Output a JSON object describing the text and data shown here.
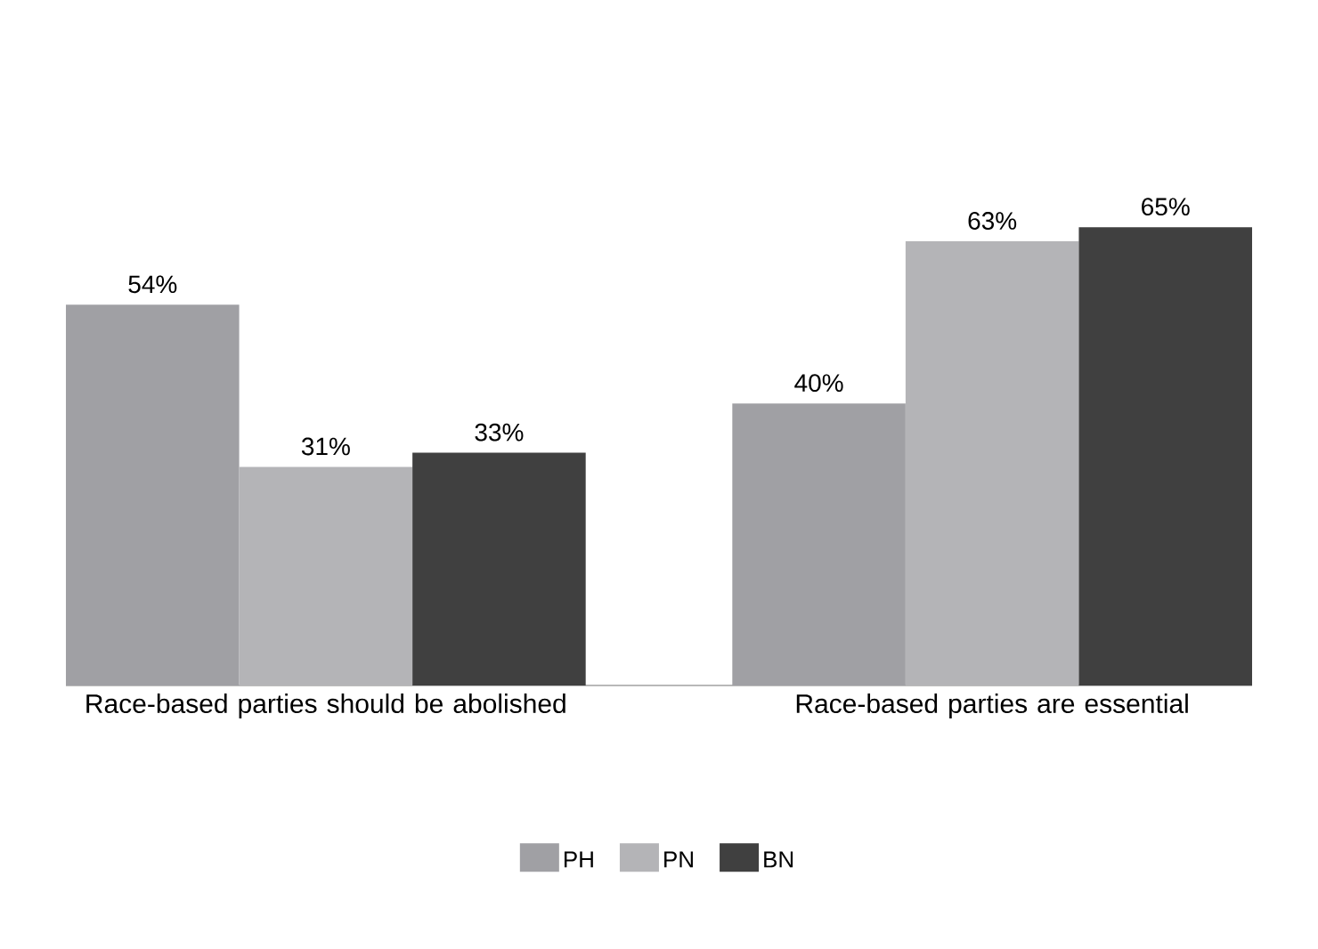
{
  "chart_data": {
    "type": "bar",
    "categories": [
      "Race-based parties should be abolished",
      "Race-based parties are essential"
    ],
    "series": [
      {
        "name": "PH",
        "color": "#a0a0a4",
        "values": [
          54,
          40
        ],
        "value_labels": [
          "54%",
          "40%"
        ]
      },
      {
        "name": "PN",
        "color": "#b4b4b7",
        "values": [
          31,
          63
        ],
        "value_labels": [
          "31%",
          "63%"
        ]
      },
      {
        "name": "BN",
        "color": "#404040",
        "values": [
          33,
          65
        ],
        "value_labels": [
          "33%",
          "65%"
        ]
      }
    ],
    "legend": "bottom"
  }
}
